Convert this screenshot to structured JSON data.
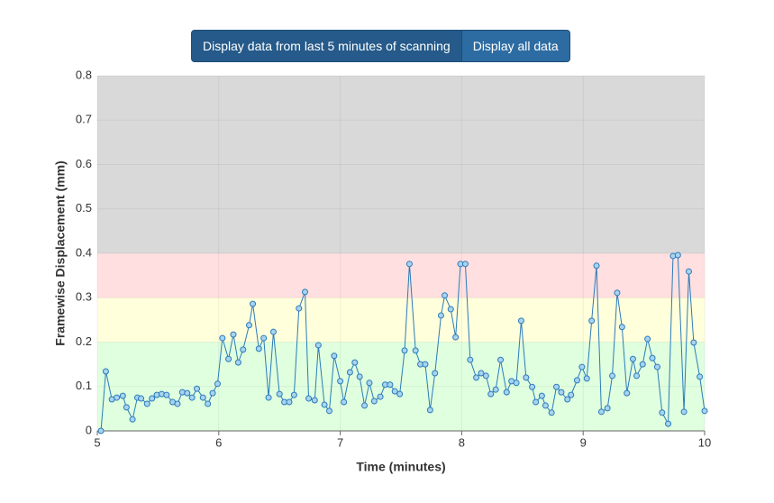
{
  "buttons": [
    "Display data from last 5 minutes of scanning",
    "Display all data"
  ],
  "chart_data": {
    "type": "line",
    "xlabel": "Time (minutes)",
    "ylabel": "Framewise Displacement (mm)",
    "xlim": [
      5,
      10
    ],
    "xticks": [
      5,
      6,
      7,
      8,
      9,
      10
    ],
    "ylim": [
      0,
      0.8
    ],
    "yticks": [
      0,
      0.1,
      0.2,
      0.3,
      0.4,
      0.5,
      0.6,
      0.7,
      0.8
    ],
    "grid": true,
    "color": "#2b7bba",
    "marker_color": "#a9d3ef",
    "bands": [
      {
        "from": 0,
        "to": 0.2,
        "color": "#dfffdf"
      },
      {
        "from": 0.2,
        "to": 0.3,
        "color": "#ffffdb"
      },
      {
        "from": 0.3,
        "to": 0.4,
        "color": "#ffdfdf"
      },
      {
        "from": 0.4,
        "to": 0.8,
        "color": "#d9d9d9"
      }
    ],
    "x": [
      5.03,
      5.07,
      5.12,
      5.16,
      5.21,
      5.24,
      5.29,
      5.33,
      5.36,
      5.41,
      5.45,
      5.49,
      5.53,
      5.57,
      5.62,
      5.66,
      5.7,
      5.74,
      5.78,
      5.82,
      5.87,
      5.91,
      5.95,
      5.99,
      6.03,
      6.08,
      6.12,
      6.16,
      6.2,
      6.25,
      6.28,
      6.33,
      6.37,
      6.41,
      6.45,
      6.5,
      6.54,
      6.58,
      6.62,
      6.66,
      6.71,
      6.74,
      6.79,
      6.82,
      6.87,
      6.91,
      6.95,
      7.0,
      7.03,
      7.08,
      7.12,
      7.16,
      7.2,
      7.24,
      7.28,
      7.33,
      7.37,
      7.41,
      7.45,
      7.49,
      7.53,
      7.57,
      7.62,
      7.66,
      7.7,
      7.74,
      7.78,
      7.83,
      7.86,
      7.91,
      7.95,
      7.99,
      8.03,
      8.07,
      8.12,
      8.16,
      8.2,
      8.24,
      8.28,
      8.32,
      8.37,
      8.41,
      8.45,
      8.49,
      8.53,
      8.58,
      8.61,
      8.66,
      8.69,
      8.74,
      8.78,
      8.82,
      8.87,
      8.9,
      8.95,
      8.99,
      9.03,
      9.07,
      9.11,
      9.15,
      9.2,
      9.24,
      9.28,
      9.32,
      9.36,
      9.41,
      9.44,
      9.49,
      9.53,
      9.57,
      9.61,
      9.65,
      9.7,
      9.74,
      9.78,
      9.83,
      9.87,
      9.91,
      9.96,
      10.0
    ],
    "values": [
      0.0,
      0.134,
      0.071,
      0.075,
      0.079,
      0.053,
      0.026,
      0.075,
      0.073,
      0.061,
      0.073,
      0.081,
      0.083,
      0.081,
      0.065,
      0.061,
      0.087,
      0.085,
      0.075,
      0.095,
      0.075,
      0.061,
      0.085,
      0.106,
      0.209,
      0.162,
      0.217,
      0.154,
      0.183,
      0.238,
      0.286,
      0.185,
      0.209,
      0.075,
      0.223,
      0.083,
      0.065,
      0.065,
      0.081,
      0.276,
      0.313,
      0.073,
      0.069,
      0.193,
      0.059,
      0.045,
      0.169,
      0.112,
      0.065,
      0.132,
      0.154,
      0.122,
      0.057,
      0.108,
      0.067,
      0.077,
      0.104,
      0.104,
      0.089,
      0.083,
      0.181,
      0.376,
      0.181,
      0.15,
      0.15,
      0.047,
      0.13,
      0.26,
      0.305,
      0.274,
      0.211,
      0.376,
      0.376,
      0.16,
      0.12,
      0.13,
      0.124,
      0.083,
      0.093,
      0.16,
      0.087,
      0.112,
      0.108,
      0.248,
      0.12,
      0.099,
      0.065,
      0.079,
      0.057,
      0.041,
      0.099,
      0.087,
      0.071,
      0.081,
      0.114,
      0.144,
      0.118,
      0.248,
      0.372,
      0.043,
      0.051,
      0.124,
      0.311,
      0.234,
      0.085,
      0.162,
      0.124,
      0.15,
      0.207,
      0.164,
      0.144,
      0.041,
      0.016,
      0.394,
      0.396,
      0.043,
      0.359,
      0.199,
      0.122,
      0.045
    ]
  }
}
